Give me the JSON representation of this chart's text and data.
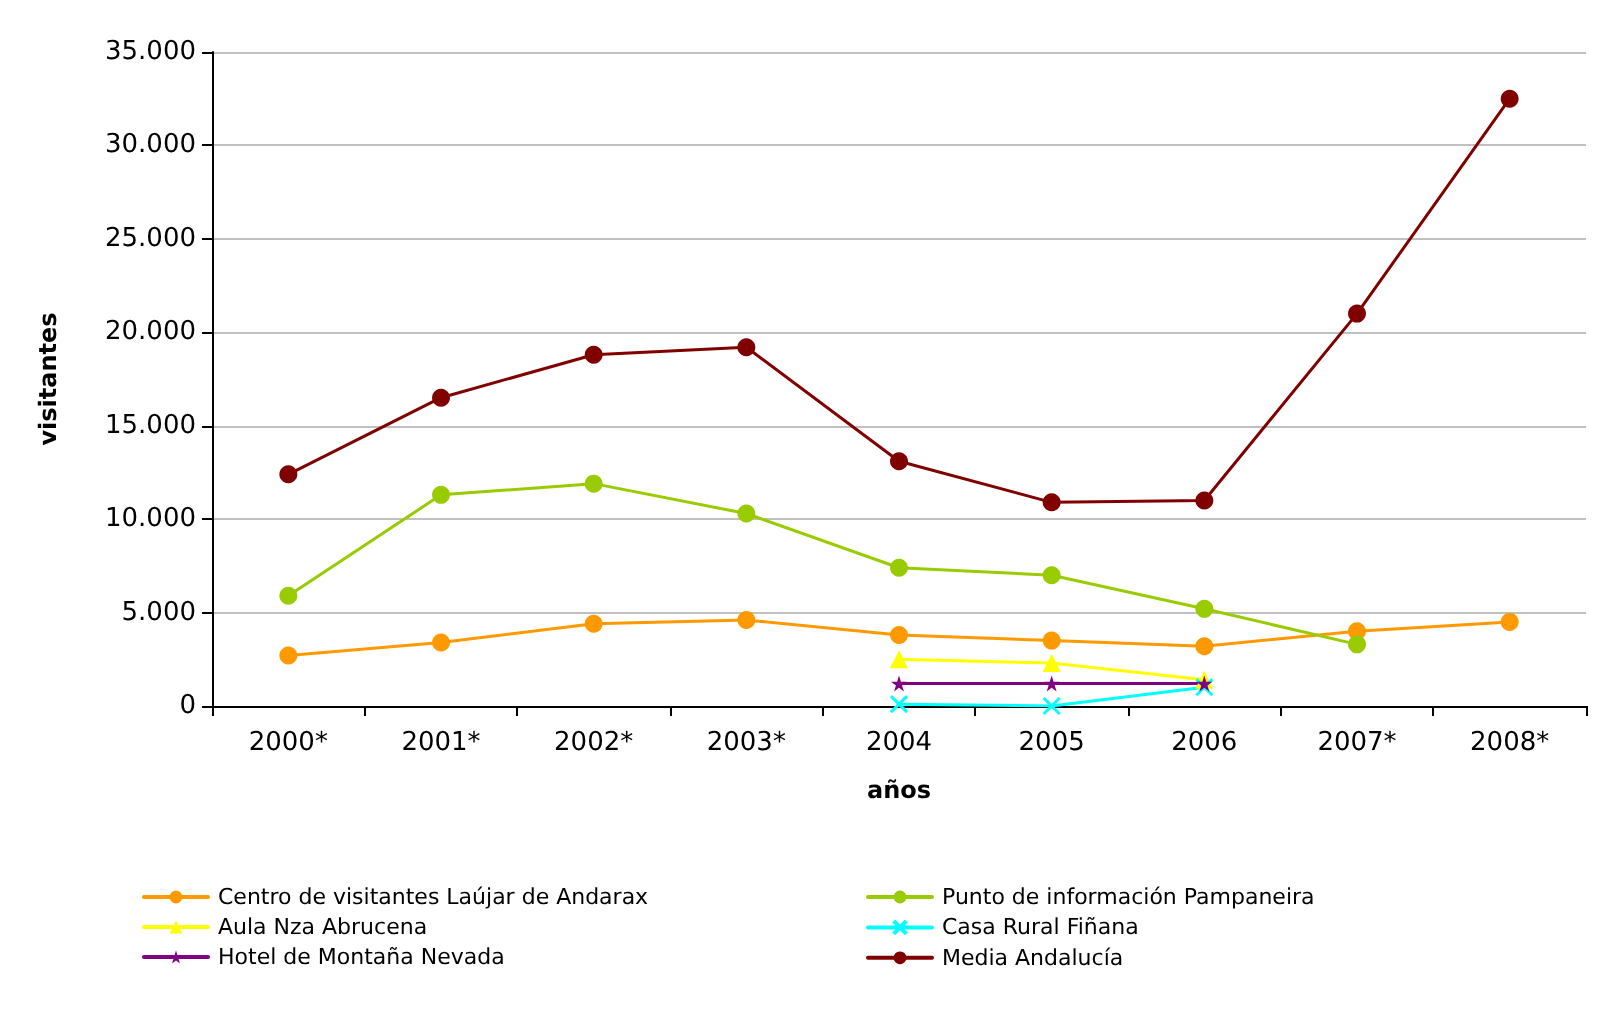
{
  "chart_data": {
    "type": "line",
    "xlabel": "años",
    "ylabel": "visitantes",
    "categories": [
      "2000*",
      "2001*",
      "2002*",
      "2003*",
      "2004",
      "2005",
      "2006",
      "2007*",
      "2008*"
    ],
    "ylim": [
      0,
      35000
    ],
    "yticks": [
      {
        "value": 0,
        "label": "0"
      },
      {
        "value": 5000,
        "label": "5.000"
      },
      {
        "value": 10000,
        "label": "10.000"
      },
      {
        "value": 15000,
        "label": "15.000"
      },
      {
        "value": 20000,
        "label": "20.000"
      },
      {
        "value": 25000,
        "label": "25.000"
      },
      {
        "value": 30000,
        "label": "30.000"
      },
      {
        "value": 35000,
        "label": "35.000"
      }
    ],
    "grid": "y",
    "legend": "bottom",
    "line_style": "solid",
    "series": [
      {
        "name": "Centro de visitantes Laújar de Andarax",
        "color": "#ff9900",
        "marker": "circle",
        "values": [
          2700,
          3400,
          4400,
          4600,
          3800,
          3500,
          3200,
          4000,
          4500
        ]
      },
      {
        "name": "Punto de información Pampaneira",
        "color": "#99cc00",
        "marker": "circle",
        "values": [
          5900,
          11300,
          11900,
          10300,
          7400,
          7000,
          5200,
          3300,
          null
        ]
      },
      {
        "name": "Aula Nza Abrucena",
        "color": "#ffff00",
        "marker": "triangle",
        "values": [
          null,
          null,
          null,
          null,
          2500,
          2300,
          1400,
          null,
          null
        ]
      },
      {
        "name": "Casa Rural Fiñana",
        "color": "#00ffff",
        "marker": "cross",
        "values": [
          null,
          null,
          null,
          null,
          100,
          0,
          1000,
          null,
          null
        ]
      },
      {
        "name": "Hotel de Montaña Nevada",
        "color": "#800080",
        "marker": "star",
        "values": [
          null,
          null,
          null,
          null,
          1200,
          1200,
          1200,
          null,
          null
        ]
      },
      {
        "name": "Media Andalucía",
        "color": "#800000",
        "marker": "circle",
        "values": [
          12400,
          16500,
          18800,
          19200,
          13100,
          10900,
          11000,
          21000,
          32500
        ]
      }
    ]
  }
}
